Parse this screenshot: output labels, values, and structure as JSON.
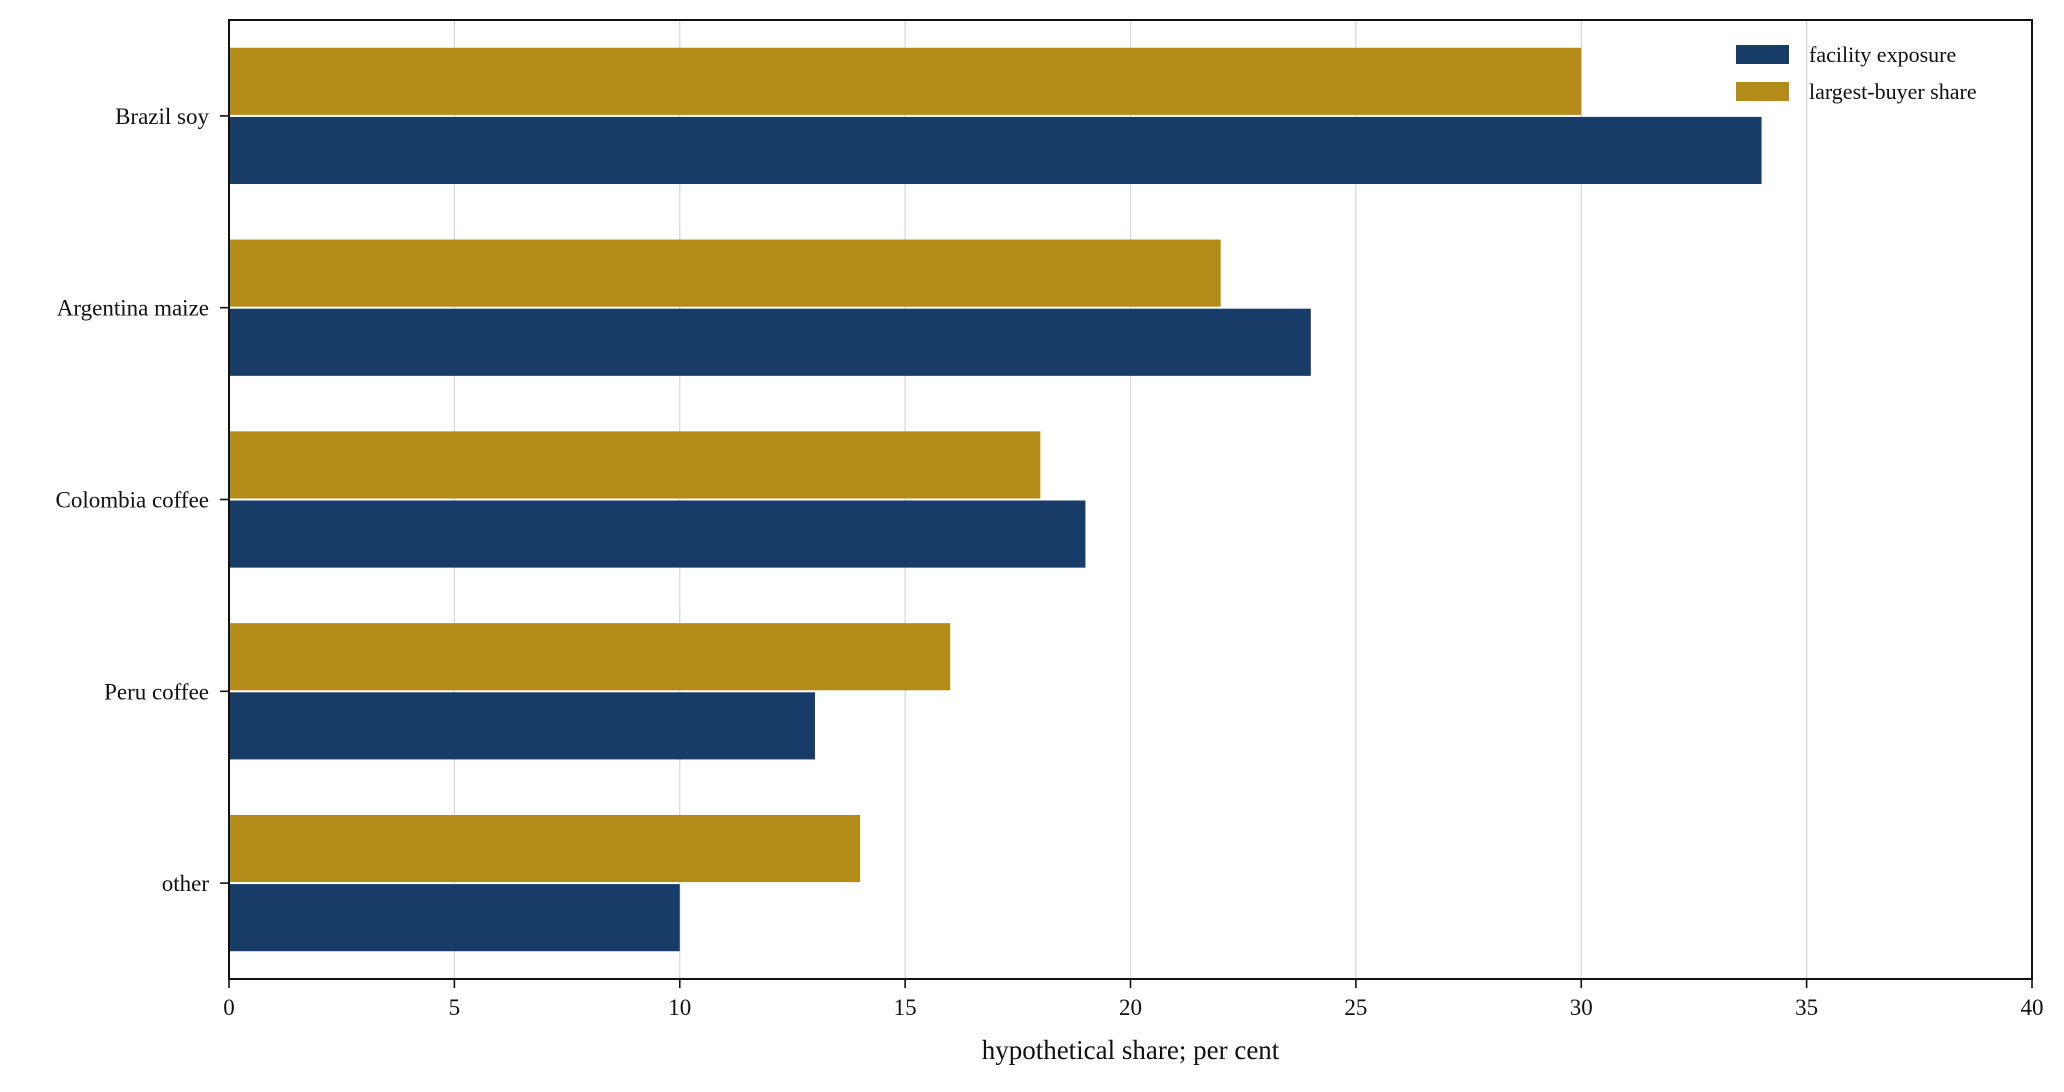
{
  "chart_data": {
    "type": "bar",
    "orientation": "horizontal",
    "categories": [
      "Brazil soy",
      "Argentina maize",
      "Colombia coffee",
      "Peru coffee",
      "other"
    ],
    "series": [
      {
        "name": "facility exposure",
        "values": [
          34,
          24,
          19,
          13,
          10
        ],
        "color": "#183c68"
      },
      {
        "name": "largest-buyer share",
        "values": [
          30,
          22,
          18,
          16,
          14
        ],
        "color": "#b38b18"
      }
    ],
    "title": "",
    "xlabel": "hypothetical share; per cent",
    "ylabel": "",
    "xlim": [
      0,
      40
    ],
    "xticks": [
      0,
      5,
      10,
      15,
      20,
      25,
      30,
      35,
      40
    ],
    "xtick_labels": [
      "0",
      "5",
      "10",
      "15",
      "20",
      "25",
      "30",
      "35",
      "40"
    ],
    "grid": "vertical",
    "legend_position": "top-right"
  }
}
